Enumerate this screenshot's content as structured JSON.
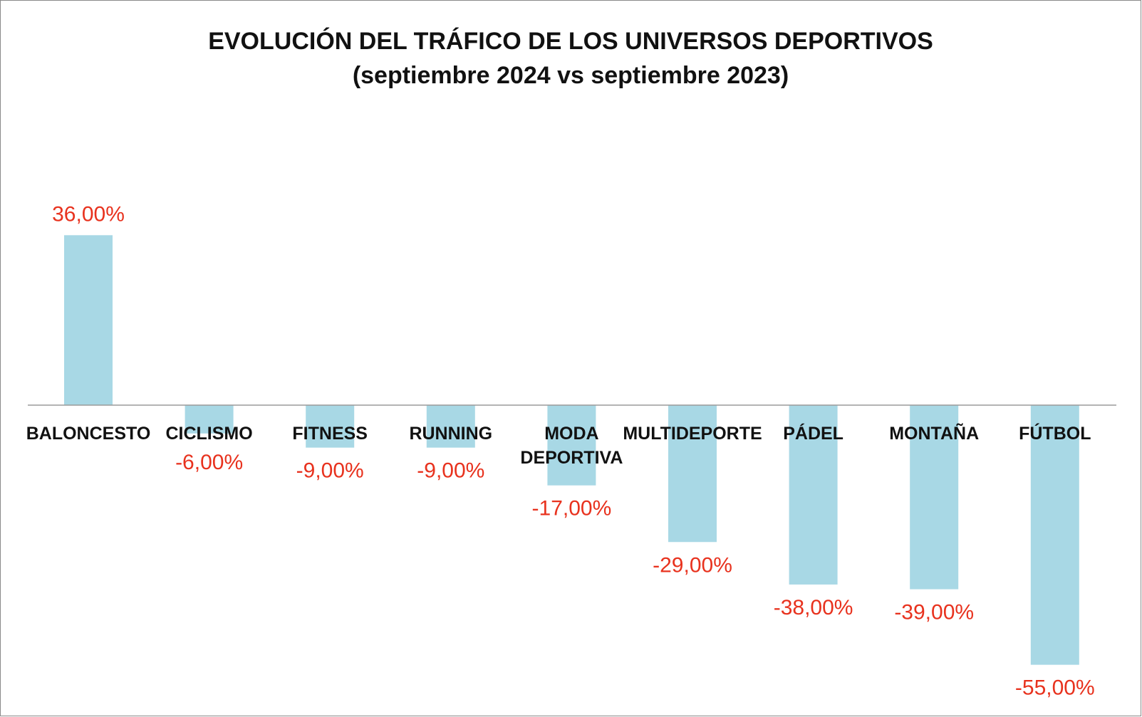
{
  "chart_data": {
    "type": "bar",
    "title_line1": "EVOLUCIÓN DEL TRÁFICO DE LOS UNIVERSOS DEPORTIVOS",
    "title_line2": "(septiembre 2024 vs septiembre 2023)",
    "categories": [
      "BALONCESTO",
      "CICLISMO",
      "FITNESS",
      "RUNNING",
      "MODA DEPORTIVA",
      "MULTIDEPORTE",
      "PÁDEL",
      "MONTAÑA",
      "FÚTBOL"
    ],
    "values": [
      36,
      -6,
      -9,
      -9,
      -17,
      -29,
      -38,
      -39,
      -55
    ],
    "value_labels": [
      "36,00%",
      "-6,00%",
      "-9,00%",
      "-9,00%",
      "-17,00%",
      "-29,00%",
      "-38,00%",
      "-39,00%",
      "-55,00%"
    ],
    "xlabel": "",
    "ylabel": "",
    "ylim": [
      -60,
      40
    ],
    "grid": false,
    "legend": "none",
    "colors": {
      "bar": "#a8d8e5",
      "value_label": "#e8321e",
      "axis": "#9a9a9a",
      "text": "#111111"
    }
  }
}
